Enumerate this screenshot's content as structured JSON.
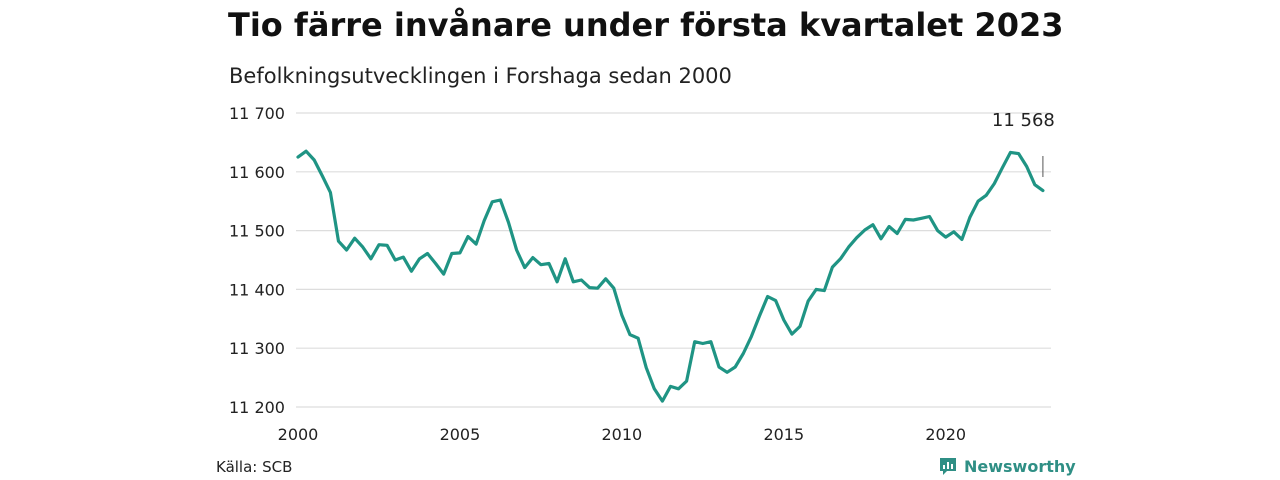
{
  "header": {
    "title": "Tio färre invånare under första kvartalet 2023",
    "subtitle": "Befolkningsutvecklingen i Forshaga sedan 2000"
  },
  "footer": {
    "source": "Källa: SCB",
    "brand": "Newsworthy"
  },
  "colors": {
    "line": "#1f9484",
    "grid": "#dddddd",
    "brand": "#2f8f85"
  },
  "chart_data": {
    "type": "line",
    "x_start": 2000.0,
    "x_step": 0.25,
    "series": [
      {
        "values": [
          11625,
          11635,
          11620,
          11593,
          11565,
          11482,
          11467,
          11487,
          11472,
          11452,
          11476,
          11475,
          11450,
          11455,
          11431,
          11452,
          11461,
          11444,
          11426,
          11461,
          11462,
          11490,
          11477,
          11517,
          11549,
          11552,
          11514,
          11467,
          11437,
          11454,
          11442,
          11444,
          11413,
          11452,
          11413,
          11416,
          11403,
          11402,
          11418,
          11402,
          11356,
          11323,
          11317,
          11267,
          11231,
          11210,
          11235,
          11231,
          11244,
          11311,
          11308,
          11311,
          11268,
          11259,
          11268,
          11291,
          11320,
          11355,
          11388,
          11381,
          11348,
          11324,
          11337,
          11380,
          11400,
          11398,
          11438,
          11452,
          11472,
          11488,
          11501,
          11510,
          11486,
          11507,
          11495,
          11519,
          11518,
          11521,
          11524,
          11500,
          11489,
          11498,
          11485,
          11523,
          11550,
          11560,
          11580,
          11607,
          11633,
          11631,
          11609,
          11578,
          11568
        ]
      }
    ],
    "xlim": [
      2000,
      2023.25
    ],
    "x_ticks": [
      "2000",
      "2005",
      "2010",
      "2015",
      "2020"
    ],
    "ylim": [
      11200,
      11700
    ],
    "y_ticks": [
      "11 200",
      "11 300",
      "11 400",
      "11 500",
      "11 600",
      "11 700"
    ],
    "grid": true,
    "annotation": {
      "label": "11 568",
      "x": 2023.0
    }
  }
}
